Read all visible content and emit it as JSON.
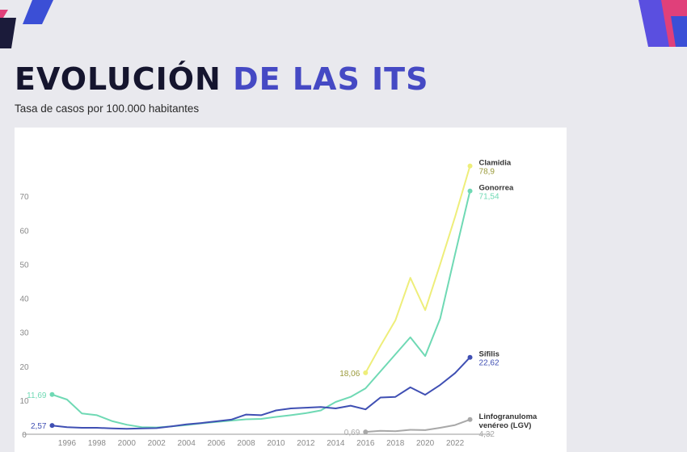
{
  "title": {
    "part1": "EVOLUCIÓN",
    "part2": "DE LAS ITS"
  },
  "subtitle": "Tasa de casos por 100.000 habitantes",
  "colors": {
    "background": "#e9e9ee",
    "title_dark": "#15152e",
    "title_accent": "#4549c4",
    "decoration_blue": "#3b4fd6",
    "decoration_pink": "#e0407a",
    "decoration_navy": "#1b1b3a"
  },
  "chart_data": {
    "type": "line",
    "title": "",
    "xlabel": "",
    "ylabel": "",
    "xlim": [
      1994,
      2024
    ],
    "ylim": [
      0,
      80
    ],
    "x_ticks": [
      1996,
      1998,
      2000,
      2002,
      2004,
      2006,
      2008,
      2010,
      2012,
      2014,
      2016,
      2018,
      2020,
      2022
    ],
    "y_ticks": [
      0,
      10,
      20,
      30,
      40,
      50,
      60,
      70
    ],
    "grid": false,
    "legend": "none",
    "series": [
      {
        "name": "Gonorrea",
        "color": "#6fd9b4",
        "x": [
          1995,
          1996,
          1997,
          1998,
          1999,
          2000,
          2001,
          2002,
          2003,
          2004,
          2005,
          2006,
          2007,
          2008,
          2009,
          2010,
          2011,
          2012,
          2013,
          2014,
          2015,
          2016,
          2017,
          2018,
          2019,
          2020,
          2021,
          2022,
          2023
        ],
        "y": [
          11.69,
          10.2,
          6.1,
          5.6,
          3.9,
          2.8,
          2.1,
          2.0,
          2.3,
          2.7,
          3.2,
          3.6,
          4.0,
          4.4,
          4.5,
          5.1,
          5.6,
          6.2,
          7.0,
          9.5,
          11.0,
          13.5,
          18.5,
          23.5,
          28.5,
          23.0,
          34.0,
          53.0,
          71.54
        ],
        "start_label": "11,69",
        "end_label": "71,54"
      },
      {
        "name": "Sífilis",
        "color": "#3f4fb3",
        "x": [
          1995,
          1996,
          1997,
          1998,
          1999,
          2000,
          2001,
          2002,
          2003,
          2004,
          2005,
          2006,
          2007,
          2008,
          2009,
          2010,
          2011,
          2012,
          2013,
          2014,
          2015,
          2016,
          2017,
          2018,
          2019,
          2020,
          2021,
          2022,
          2023
        ],
        "y": [
          2.57,
          2.1,
          1.9,
          1.9,
          1.7,
          1.6,
          1.7,
          1.8,
          2.3,
          2.9,
          3.3,
          3.8,
          4.3,
          5.8,
          5.6,
          7.0,
          7.6,
          7.8,
          8.0,
          7.6,
          8.4,
          7.3,
          10.8,
          11.0,
          13.8,
          11.6,
          14.5,
          18.0,
          22.62
        ],
        "start_label": "2,57",
        "end_label": "22,62"
      },
      {
        "name": "Clamidia",
        "color": "#eeee7a",
        "x": [
          2016,
          2017,
          2018,
          2019,
          2020,
          2021,
          2022,
          2023
        ],
        "y": [
          18.06,
          26.0,
          33.5,
          46.0,
          36.5,
          50.0,
          64.0,
          78.9
        ],
        "start_label": "18,06",
        "end_label": "78,9"
      },
      {
        "name": "Linfogranuloma venéreo (LGV)",
        "name_lines": [
          "Linfogranuloma",
          "venéreo (LGV)"
        ],
        "color": "#a8a8a8",
        "x": [
          2016,
          2017,
          2018,
          2019,
          2020,
          2021,
          2022,
          2023
        ],
        "y": [
          0.69,
          1.0,
          0.9,
          1.3,
          1.2,
          1.9,
          2.7,
          4.32
        ],
        "start_label": "0,69",
        "end_label": "4,32"
      }
    ]
  }
}
